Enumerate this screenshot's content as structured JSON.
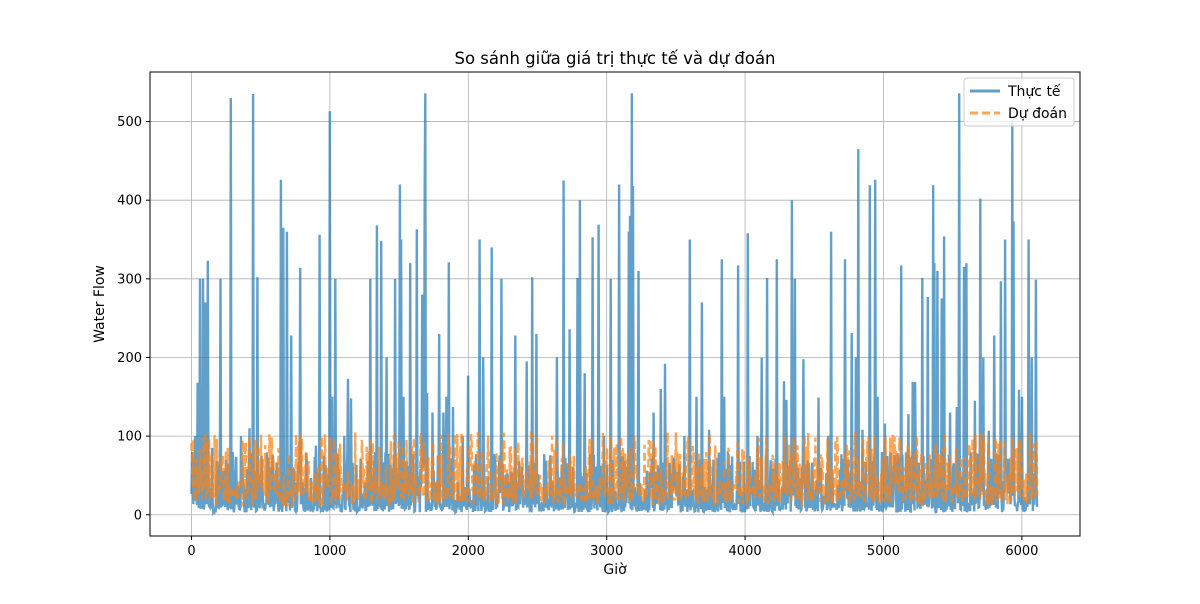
{
  "chart_data": {
    "type": "line",
    "title": "So sánh giữa giá trị thực tế và dự đoán",
    "xlabel": "Giờ",
    "ylabel": "Water Flow",
    "xlim": [
      -300,
      6420
    ],
    "ylim": [
      -27,
      563
    ],
    "xticks": [
      0,
      1000,
      2000,
      3000,
      4000,
      5000,
      6000
    ],
    "yticks": [
      0,
      100,
      200,
      300,
      400,
      500
    ],
    "xtick_labels": [
      "0",
      "1000",
      "2000",
      "3000",
      "4000",
      "5000",
      "6000"
    ],
    "ytick_labels": [
      "0",
      "100",
      "200",
      "300",
      "400",
      "500"
    ],
    "grid": true,
    "legend_position": "top-right",
    "x_max": 6110,
    "series": [
      {
        "name": "Thực tế",
        "color": "#1f77b4",
        "style": "solid",
        "baseline_range": [
          3,
          80
        ],
        "spikes": [
          [
            25,
            100
          ],
          [
            45,
            168
          ],
          [
            60,
            300
          ],
          [
            85,
            300
          ],
          [
            100,
            270
          ],
          [
            120,
            323
          ],
          [
            150,
            85
          ],
          [
            210,
            300
          ],
          [
            285,
            530
          ],
          [
            360,
            100
          ],
          [
            420,
            110
          ],
          [
            445,
            535
          ],
          [
            475,
            302
          ],
          [
            645,
            426
          ],
          [
            665,
            365
          ],
          [
            690,
            360
          ],
          [
            720,
            228
          ],
          [
            785,
            314
          ],
          [
            900,
            88
          ],
          [
            925,
            356
          ],
          [
            1000,
            513
          ],
          [
            1015,
            150
          ],
          [
            1040,
            300
          ],
          [
            1105,
            100
          ],
          [
            1130,
            173
          ],
          [
            1150,
            148
          ],
          [
            1290,
            300
          ],
          [
            1340,
            368
          ],
          [
            1370,
            348
          ],
          [
            1410,
            200
          ],
          [
            1470,
            300
          ],
          [
            1505,
            420
          ],
          [
            1515,
            350
          ],
          [
            1530,
            150
          ],
          [
            1580,
            320
          ],
          [
            1630,
            363
          ],
          [
            1665,
            280
          ],
          [
            1685,
            421
          ],
          [
            1690,
            536
          ],
          [
            1700,
            155
          ],
          [
            1740,
            130
          ],
          [
            1790,
            230
          ],
          [
            1820,
            130
          ],
          [
            1840,
            150
          ],
          [
            1860,
            321
          ],
          [
            1890,
            137
          ],
          [
            1960,
            100
          ],
          [
            2000,
            177
          ],
          [
            2080,
            350
          ],
          [
            2110,
            200
          ],
          [
            2170,
            340
          ],
          [
            2240,
            300
          ],
          [
            2340,
            228
          ],
          [
            2420,
            195
          ],
          [
            2460,
            302
          ],
          [
            2490,
            230
          ],
          [
            2640,
            200
          ],
          [
            2690,
            425
          ],
          [
            2730,
            236
          ],
          [
            2790,
            301
          ],
          [
            2805,
            400
          ],
          [
            2840,
            180
          ],
          [
            2900,
            353
          ],
          [
            2940,
            369
          ],
          [
            2980,
            100
          ],
          [
            3030,
            300
          ],
          [
            3090,
            420
          ],
          [
            3160,
            360
          ],
          [
            3170,
            380
          ],
          [
            3180,
            536
          ],
          [
            3190,
            418
          ],
          [
            3230,
            310
          ],
          [
            3340,
            130
          ],
          [
            3390,
            160
          ],
          [
            3420,
            192
          ],
          [
            3560,
            100
          ],
          [
            3600,
            350
          ],
          [
            3650,
            150
          ],
          [
            3690,
            270
          ],
          [
            3740,
            108
          ],
          [
            3830,
            325
          ],
          [
            3850,
            150
          ],
          [
            3950,
            317
          ],
          [
            4020,
            358
          ],
          [
            4090,
            100
          ],
          [
            4120,
            200
          ],
          [
            4160,
            301
          ],
          [
            4230,
            325
          ],
          [
            4280,
            170
          ],
          [
            4300,
            146
          ],
          [
            4340,
            400
          ],
          [
            4360,
            300
          ],
          [
            4420,
            198
          ],
          [
            4530,
            149
          ],
          [
            4600,
            100
          ],
          [
            4620,
            360
          ],
          [
            4720,
            325
          ],
          [
            4770,
            231
          ],
          [
            4800,
            200
          ],
          [
            4820,
            465
          ],
          [
            4850,
            108
          ],
          [
            4900,
            419
          ],
          [
            4940,
            426
          ],
          [
            4960,
            150
          ],
          [
            5010,
            116
          ],
          [
            5130,
            317
          ],
          [
            5180,
            128
          ],
          [
            5210,
            169
          ],
          [
            5230,
            169
          ],
          [
            5280,
            301
          ],
          [
            5320,
            277
          ],
          [
            5360,
            419
          ],
          [
            5370,
            320
          ],
          [
            5390,
            310
          ],
          [
            5420,
            275
          ],
          [
            5440,
            354
          ],
          [
            5480,
            130
          ],
          [
            5530,
            137
          ],
          [
            5545,
            536
          ],
          [
            5580,
            315
          ],
          [
            5600,
            320
          ],
          [
            5660,
            145
          ],
          [
            5700,
            402
          ],
          [
            5720,
            200
          ],
          [
            5760,
            107
          ],
          [
            5800,
            228
          ],
          [
            5850,
            297
          ],
          [
            5880,
            350
          ],
          [
            5930,
            501
          ],
          [
            5940,
            373
          ],
          [
            5980,
            159
          ],
          [
            6000,
            150
          ],
          [
            6050,
            350
          ],
          [
            6070,
            200
          ],
          [
            6100,
            299
          ]
        ]
      },
      {
        "name": "Dự đoán",
        "color": "#ff7f0e",
        "style": "dashed",
        "baseline_range": [
          10,
          105
        ]
      }
    ]
  }
}
